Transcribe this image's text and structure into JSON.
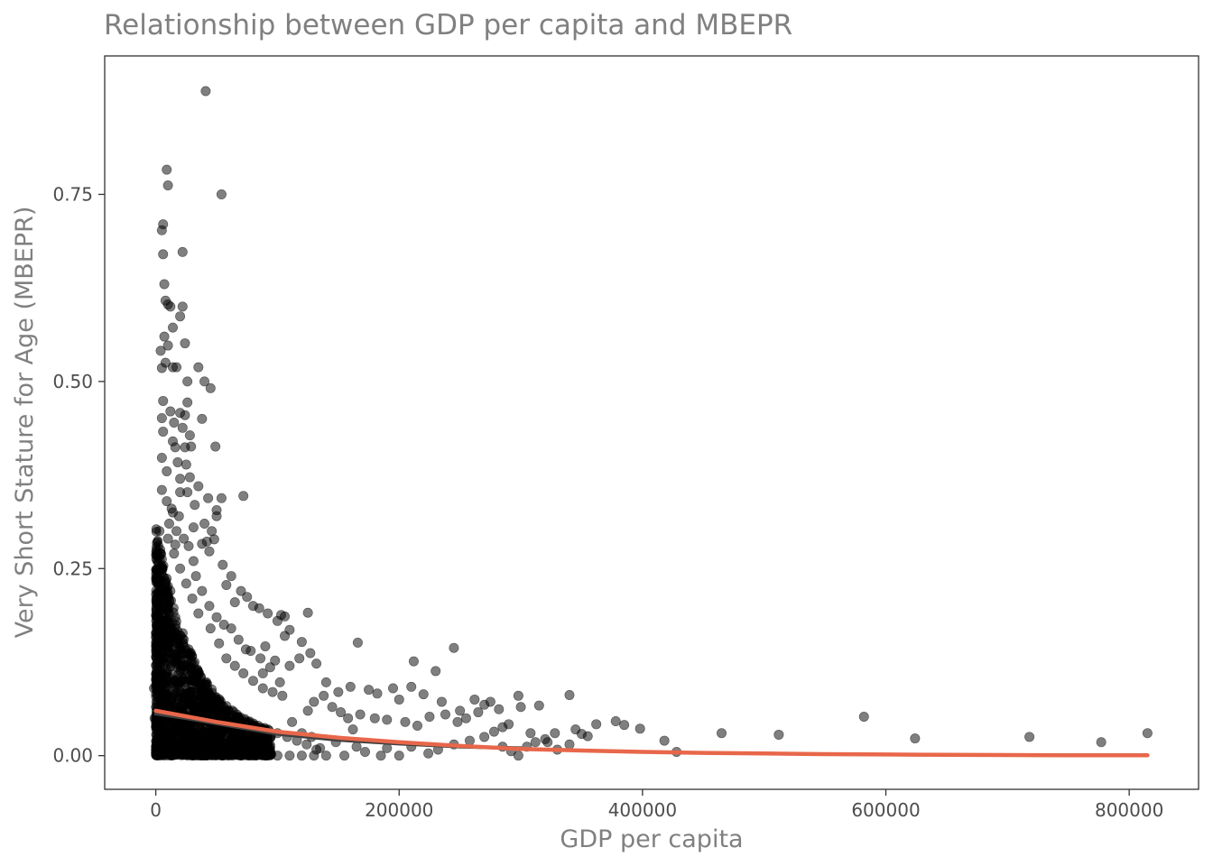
{
  "chart_data": {
    "type": "scatter",
    "title": "Relationship between GDP per capita and MBEPR",
    "xlabel": "GDP per capita",
    "ylabel": "Very Short Stature for Age (MBEPR)",
    "xlim": [
      -42000,
      857000
    ],
    "ylim": [
      -0.045,
      0.935
    ],
    "x_ticks": [
      0,
      200000,
      400000,
      600000,
      800000
    ],
    "x_tick_labels": [
      "0",
      "200000",
      "400000",
      "600000",
      "800000"
    ],
    "y_ticks": [
      0.0,
      0.25,
      0.5,
      0.75
    ],
    "y_tick_labels": [
      "0.00",
      "0.25",
      "0.50",
      "0.75"
    ],
    "grid": false,
    "point_color": "#000000",
    "point_alpha": 0.5,
    "fit_color": "#e8674a",
    "loess_color": "#404040",
    "series": [
      {
        "values": [
          [
            41000,
            0.888
          ],
          [
            9000,
            0.783
          ],
          [
            10000,
            0.762
          ],
          [
            54000,
            0.75
          ],
          [
            6000,
            0.71
          ],
          [
            5000,
            0.702
          ],
          [
            22000,
            0.673
          ],
          [
            6000,
            0.67
          ],
          [
            7000,
            0.63
          ],
          [
            8000,
            0.608
          ],
          [
            12000,
            0.6
          ],
          [
            22000,
            0.6
          ],
          [
            10000,
            0.603
          ],
          [
            20000,
            0.587
          ],
          [
            14000,
            0.572
          ],
          [
            7000,
            0.56
          ],
          [
            24000,
            0.551
          ],
          [
            4000,
            0.541
          ],
          [
            10000,
            0.548
          ],
          [
            8000,
            0.525
          ],
          [
            5000,
            0.518
          ],
          [
            14000,
            0.519
          ],
          [
            17000,
            0.519
          ],
          [
            35000,
            0.519
          ],
          [
            26000,
            0.5
          ],
          [
            40000,
            0.5
          ],
          [
            45000,
            0.491
          ],
          [
            6000,
            0.474
          ],
          [
            26000,
            0.472
          ],
          [
            12000,
            0.46
          ],
          [
            20000,
            0.458
          ],
          [
            24000,
            0.455
          ],
          [
            5000,
            0.451
          ],
          [
            38000,
            0.45
          ],
          [
            15000,
            0.445
          ],
          [
            22000,
            0.438
          ],
          [
            6000,
            0.433
          ],
          [
            28000,
            0.428
          ],
          [
            14000,
            0.42
          ],
          [
            16000,
            0.412
          ],
          [
            24000,
            0.412
          ],
          [
            29000,
            0.413
          ],
          [
            49000,
            0.413
          ],
          [
            5000,
            0.398
          ],
          [
            18000,
            0.392
          ],
          [
            25000,
            0.389
          ],
          [
            9000,
            0.38
          ],
          [
            28000,
            0.372
          ],
          [
            20000,
            0.37
          ],
          [
            35000,
            0.36
          ],
          [
            5000,
            0.355
          ],
          [
            20000,
            0.352
          ],
          [
            26000,
            0.352
          ],
          [
            72000,
            0.347
          ],
          [
            43000,
            0.344
          ],
          [
            54000,
            0.344
          ],
          [
            32000,
            0.335
          ],
          [
            50000,
            0.328
          ],
          [
            14000,
            0.325
          ],
          [
            50000,
            0.32
          ],
          [
            40000,
            0.31
          ],
          [
            31000,
            0.305
          ],
          [
            46000,
            0.3
          ],
          [
            48000,
            0.289
          ],
          [
            42000,
            0.286
          ],
          [
            38000,
            0.283
          ],
          [
            44000,
            0.273
          ],
          [
            16000,
            0.282
          ],
          [
            55000,
            0.255
          ],
          [
            62000,
            0.24
          ],
          [
            58000,
            0.228
          ],
          [
            70000,
            0.22
          ],
          [
            75000,
            0.212
          ],
          [
            65000,
            0.205
          ],
          [
            80000,
            0.2
          ],
          [
            85000,
            0.197
          ],
          [
            92000,
            0.19
          ],
          [
            103000,
            0.188
          ],
          [
            100000,
            0.18
          ],
          [
            106000,
            0.186
          ],
          [
            125000,
            0.191
          ],
          [
            110000,
            0.168
          ],
          [
            106000,
            0.16
          ],
          [
            120000,
            0.152
          ],
          [
            166000,
            0.151
          ],
          [
            90000,
            0.146
          ],
          [
            78000,
            0.14
          ],
          [
            98000,
            0.127
          ],
          [
            118000,
            0.13
          ],
          [
            127000,
            0.137
          ],
          [
            245000,
            0.144
          ],
          [
            212000,
            0.126
          ],
          [
            230000,
            0.113
          ],
          [
            110000,
            0.12
          ],
          [
            132000,
            0.123
          ],
          [
            88000,
            0.11
          ],
          [
            102000,
            0.098
          ],
          [
            140000,
            0.098
          ],
          [
            150000,
            0.085
          ],
          [
            160000,
            0.092
          ],
          [
            175000,
            0.088
          ],
          [
            182000,
            0.083
          ],
          [
            195000,
            0.09
          ],
          [
            200000,
            0.075
          ],
          [
            210000,
            0.092
          ],
          [
            220000,
            0.082
          ],
          [
            235000,
            0.072
          ],
          [
            250000,
            0.06
          ],
          [
            262000,
            0.075
          ],
          [
            270000,
            0.068
          ],
          [
            275000,
            0.072
          ],
          [
            282000,
            0.062
          ],
          [
            298000,
            0.08
          ],
          [
            315000,
            0.067
          ],
          [
            340000,
            0.081
          ],
          [
            362000,
            0.042
          ],
          [
            378000,
            0.046
          ],
          [
            398000,
            0.036
          ],
          [
            385000,
            0.041
          ],
          [
            168000,
            0.055
          ],
          [
            180000,
            0.05
          ],
          [
            190000,
            0.048
          ],
          [
            205000,
            0.045
          ],
          [
            215000,
            0.04
          ],
          [
            225000,
            0.052
          ],
          [
            238000,
            0.055
          ],
          [
            248000,
            0.045
          ],
          [
            255000,
            0.05
          ],
          [
            265000,
            0.058
          ],
          [
            278000,
            0.032
          ],
          [
            285000,
            0.038
          ],
          [
            290000,
            0.042
          ],
          [
            300000,
            0.065
          ],
          [
            308000,
            0.03
          ],
          [
            312000,
            0.018
          ],
          [
            320000,
            0.022
          ],
          [
            328000,
            0.03
          ],
          [
            345000,
            0.035
          ],
          [
            350000,
            0.029
          ],
          [
            355000,
            0.026
          ],
          [
            285000,
            0.012
          ],
          [
            298000,
            0.0
          ],
          [
            270000,
            0.025
          ],
          [
            258000,
            0.02
          ],
          [
            245000,
            0.015
          ],
          [
            232000,
            0.008
          ],
          [
            224000,
            0.003
          ],
          [
            210000,
            0.012
          ],
          [
            200000,
            0.0
          ],
          [
            190000,
            0.01
          ],
          [
            185000,
            0.0
          ],
          [
            172000,
            0.005
          ],
          [
            165000,
            0.012
          ],
          [
            155000,
            0.0
          ],
          [
            148000,
            0.018
          ],
          [
            140000,
            0.0
          ],
          [
            135000,
            0.01
          ],
          [
            128000,
            0.025
          ],
          [
            120000,
            0.03
          ],
          [
            112000,
            0.045
          ],
          [
            125000,
            0.06
          ],
          [
            130000,
            0.072
          ],
          [
            138000,
            0.08
          ],
          [
            145000,
            0.065
          ],
          [
            152000,
            0.058
          ],
          [
            158000,
            0.05
          ],
          [
            162000,
            0.035
          ],
          [
            330000,
            0.008
          ],
          [
            340000,
            0.015
          ],
          [
            322000,
            0.018
          ],
          [
            305000,
            0.012
          ],
          [
            292000,
            0.006
          ],
          [
            418000,
            0.02
          ],
          [
            428000,
            0.005
          ],
          [
            465000,
            0.03
          ],
          [
            512000,
            0.028
          ],
          [
            582000,
            0.052
          ],
          [
            624000,
            0.023
          ],
          [
            718000,
            0.025
          ],
          [
            777000,
            0.018
          ],
          [
            815000,
            0.03
          ],
          [
            6000,
            0.2
          ],
          [
            8000,
            0.18
          ],
          [
            12000,
            0.22
          ],
          [
            15000,
            0.16
          ],
          [
            18000,
            0.14
          ],
          [
            22000,
            0.12
          ],
          [
            28000,
            0.1
          ],
          [
            34000,
            0.09
          ],
          [
            40000,
            0.08
          ],
          [
            46000,
            0.07
          ],
          [
            3000,
            0.3
          ],
          [
            4000,
            0.27
          ],
          [
            -1500,
            0.09
          ],
          [
            -1000,
            0.05
          ],
          [
            5000,
            0.25
          ],
          [
            10000,
            0.29
          ],
          [
            15000,
            0.27
          ],
          [
            20000,
            0.25
          ],
          [
            25000,
            0.23
          ],
          [
            30000,
            0.21
          ],
          [
            35000,
            0.19
          ],
          [
            45000,
            0.17
          ],
          [
            52000,
            0.15
          ],
          [
            58000,
            0.13
          ],
          [
            65000,
            0.12
          ],
          [
            72000,
            0.11
          ],
          [
            80000,
            0.1
          ],
          [
            88000,
            0.09
          ],
          [
            96000,
            0.085
          ],
          [
            104000,
            0.08
          ],
          [
            60000,
            0.06
          ],
          [
            68000,
            0.05
          ],
          [
            76000,
            0.045
          ],
          [
            84000,
            0.04
          ],
          [
            92000,
            0.035
          ],
          [
            100000,
            0.03
          ],
          [
            108000,
            0.025
          ],
          [
            116000,
            0.02
          ],
          [
            124000,
            0.015
          ],
          [
            132000,
            0.008
          ],
          [
            70000,
            0.0
          ],
          [
            80000,
            0.0
          ],
          [
            90000,
            0.0
          ],
          [
            100000,
            0.0
          ],
          [
            110000,
            0.0
          ],
          [
            120000,
            0.0
          ],
          [
            130000,
            0.0
          ],
          [
            62000,
            0.17
          ],
          [
            68000,
            0.155
          ],
          [
            74000,
            0.142
          ],
          [
            86000,
            0.13
          ],
          [
            94000,
            0.118
          ],
          [
            33000,
            0.24
          ],
          [
            38000,
            0.22
          ],
          [
            44000,
            0.2
          ],
          [
            50000,
            0.185
          ],
          [
            56000,
            0.175
          ],
          [
            9000,
            0.34
          ],
          [
            11000,
            0.31
          ],
          [
            13000,
            0.33
          ],
          [
            17000,
            0.3
          ],
          [
            19000,
            0.32
          ],
          [
            23000,
            0.29
          ],
          [
            27000,
            0.28
          ],
          [
            31000,
            0.26
          ]
        ]
      }
    ],
    "fit_line": {
      "x": [
        0,
        50000,
        100000,
        150000,
        200000,
        250000,
        300000,
        350000,
        400000,
        450000,
        500000,
        550000,
        600000,
        650000,
        700000,
        750000,
        815000
      ],
      "y": [
        0.06,
        0.045,
        0.032,
        0.024,
        0.018,
        0.013,
        0.009,
        0.0068,
        0.005,
        0.0037,
        0.0028,
        0.002,
        0.0015,
        0.0011,
        0.0008,
        0.0006,
        0.0004
      ]
    },
    "loess_line": {
      "x": [
        0,
        25000,
        50000,
        75000,
        100000,
        150000,
        200000,
        250000,
        300000
      ],
      "y": [
        0.056,
        0.05,
        0.043,
        0.036,
        0.029,
        0.021,
        0.016,
        0.012,
        0.01
      ]
    }
  }
}
